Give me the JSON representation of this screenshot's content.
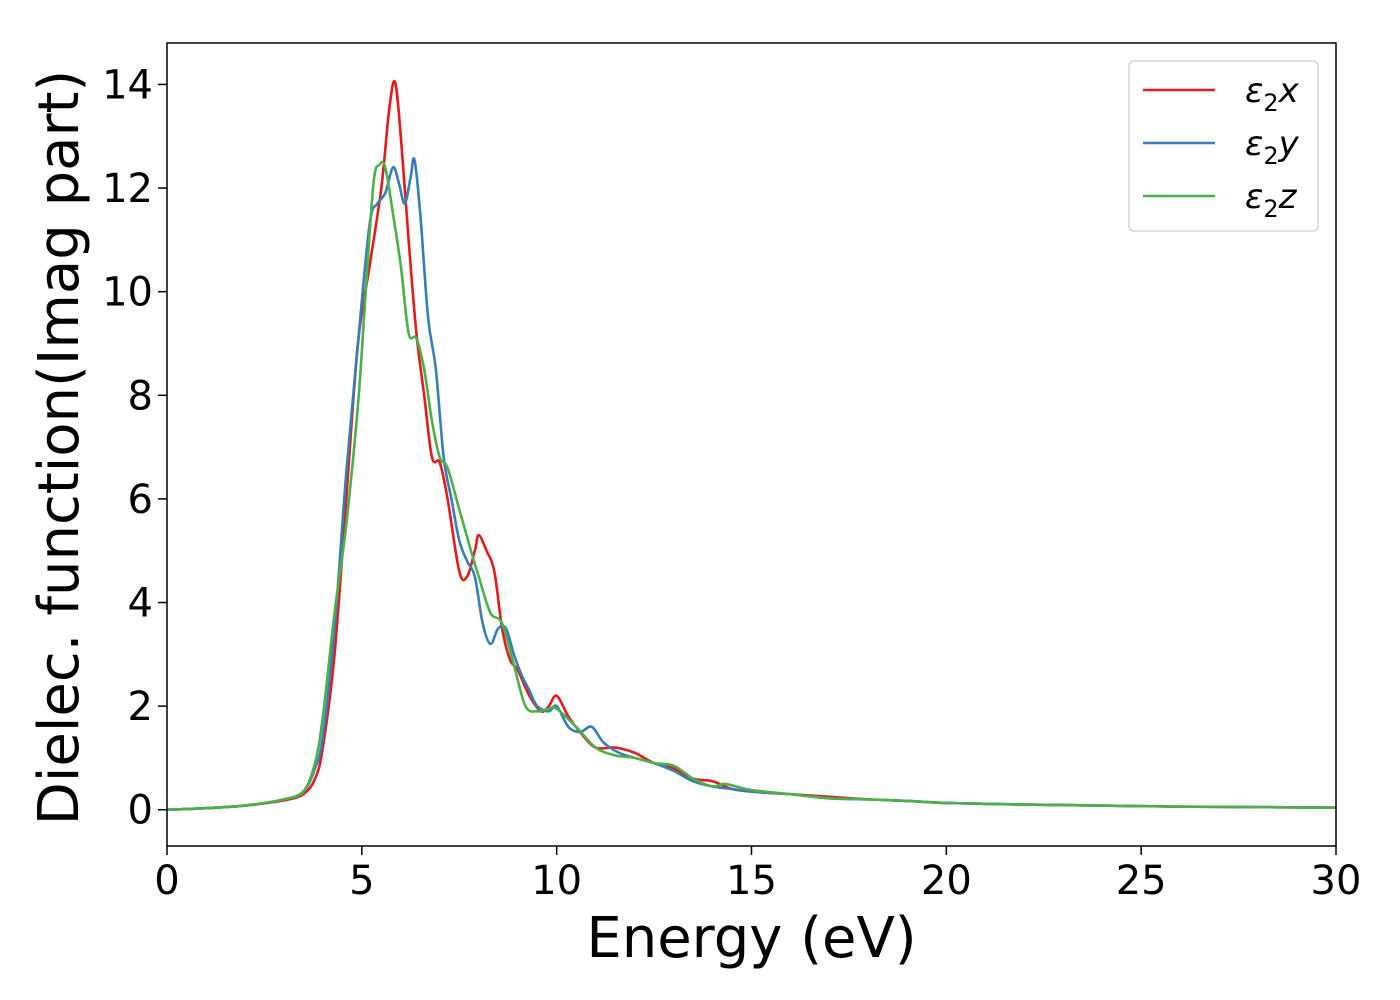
{
  "chart_data": {
    "type": "line",
    "xlabel": "Energy (eV)",
    "ylabel": "Dielec. function(Imag part)",
    "xlim": [
      0,
      30
    ],
    "ylim": [
      -0.7,
      14.8
    ],
    "xticks": [
      0,
      5,
      10,
      15,
      20,
      25,
      30
    ],
    "xtick_labels": [
      "0",
      "5",
      "10",
      "15",
      "20",
      "25",
      "30"
    ],
    "yticks": [
      0,
      2,
      4,
      6,
      8,
      10,
      12,
      14
    ],
    "ytick_labels": [
      "0",
      "2",
      "4",
      "6",
      "8",
      "10",
      "12",
      "14"
    ],
    "grid": false,
    "legend_position": "top-right",
    "series": [
      {
        "name": "ε₂x",
        "legend_main": "ε",
        "legend_sub": "2",
        "legend_var": "x",
        "color": "#e41a1c",
        "x": [
          0,
          1,
          2,
          3,
          3.5,
          3.8,
          4.0,
          4.3,
          4.6,
          4.9,
          5.2,
          5.5,
          5.7,
          5.85,
          6.0,
          6.2,
          6.4,
          6.6,
          6.8,
          7.0,
          7.2,
          7.5,
          7.7,
          7.9,
          8.0,
          8.2,
          8.4,
          8.6,
          8.8,
          9.0,
          9.3,
          9.6,
          9.8,
          10.0,
          10.3,
          10.6,
          11.0,
          11.5,
          12.0,
          12.5,
          13.0,
          13.5,
          14.0,
          14.5,
          15.0,
          16.0,
          17.0,
          18.0,
          19.0,
          20.0,
          22.0,
          24.0,
          26.0,
          28.0,
          30.0
        ],
        "y": [
          0.0,
          0.03,
          0.08,
          0.18,
          0.3,
          0.6,
          1.2,
          3.0,
          6.0,
          9.0,
          10.5,
          12.0,
          13.5,
          14.05,
          13.0,
          11.0,
          9.2,
          8.0,
          6.8,
          6.7,
          6.0,
          4.6,
          4.5,
          5.0,
          5.3,
          5.0,
          4.6,
          3.5,
          2.9,
          2.7,
          2.2,
          1.9,
          2.0,
          2.2,
          1.8,
          1.5,
          1.2,
          1.2,
          1.1,
          0.9,
          0.8,
          0.6,
          0.55,
          0.4,
          0.35,
          0.3,
          0.25,
          0.2,
          0.17,
          0.13,
          0.1,
          0.08,
          0.06,
          0.05,
          0.04
        ]
      },
      {
        "name": "ε₂y",
        "legend_main": "ε",
        "legend_sub": "2",
        "legend_var": "y",
        "color": "#377eb8",
        "x": [
          0,
          1,
          2,
          3,
          3.5,
          3.8,
          4.0,
          4.3,
          4.6,
          4.9,
          5.2,
          5.4,
          5.6,
          5.8,
          5.95,
          6.1,
          6.25,
          6.35,
          6.5,
          6.7,
          6.9,
          7.1,
          7.3,
          7.5,
          7.7,
          7.9,
          8.1,
          8.3,
          8.5,
          8.7,
          8.9,
          9.1,
          9.3,
          9.5,
          9.8,
          10.0,
          10.3,
          10.6,
          10.9,
          11.2,
          11.6,
          12.0,
          12.5,
          13.0,
          13.5,
          14.0,
          14.5,
          15.0,
          16.0,
          17.0,
          18.0,
          19.0,
          20.0,
          22.0,
          24.0,
          26.0,
          28.0,
          30.0
        ],
        "y": [
          0.0,
          0.03,
          0.08,
          0.2,
          0.35,
          0.8,
          1.4,
          3.5,
          6.5,
          9.0,
          11.3,
          11.7,
          11.9,
          12.4,
          12.1,
          11.7,
          12.2,
          12.55,
          11.5,
          9.5,
          8.5,
          6.8,
          6.0,
          5.2,
          4.8,
          4.5,
          3.6,
          3.2,
          3.5,
          3.5,
          3.0,
          2.6,
          2.3,
          2.0,
          1.9,
          2.0,
          1.6,
          1.5,
          1.6,
          1.3,
          1.1,
          1.0,
          0.9,
          0.75,
          0.55,
          0.45,
          0.4,
          0.35,
          0.3,
          0.22,
          0.2,
          0.17,
          0.13,
          0.1,
          0.08,
          0.06,
          0.05,
          0.04
        ]
      },
      {
        "name": "ε₂z",
        "legend_main": "ε",
        "legend_sub": "2",
        "legend_var": "z",
        "color": "#4daf4a",
        "x": [
          0,
          1,
          2,
          3,
          3.5,
          3.8,
          4.0,
          4.3,
          4.6,
          4.9,
          5.1,
          5.3,
          5.45,
          5.6,
          5.8,
          6.0,
          6.2,
          6.4,
          6.6,
          6.8,
          7.0,
          7.2,
          7.5,
          7.8,
          8.0,
          8.3,
          8.6,
          8.9,
          9.2,
          9.5,
          9.8,
          10.0,
          10.5,
          11.0,
          11.5,
          12.0,
          12.5,
          13.0,
          13.5,
          14.0,
          14.3,
          14.6,
          15.0,
          16.0,
          17.0,
          18.0,
          19.0,
          20.0,
          22.0,
          24.0,
          26.0,
          28.0,
          30.0
        ],
        "y": [
          0.0,
          0.03,
          0.08,
          0.2,
          0.35,
          0.9,
          1.8,
          3.8,
          5.5,
          7.8,
          10.0,
          12.1,
          12.45,
          12.4,
          11.5,
          10.5,
          9.2,
          9.1,
          8.5,
          7.5,
          6.8,
          6.6,
          5.8,
          5.0,
          4.5,
          3.8,
          3.6,
          2.8,
          2.0,
          1.9,
          1.95,
          1.95,
          1.6,
          1.2,
          1.05,
          1.0,
          0.9,
          0.85,
          0.6,
          0.45,
          0.5,
          0.45,
          0.38,
          0.3,
          0.22,
          0.2,
          0.17,
          0.13,
          0.1,
          0.08,
          0.06,
          0.05,
          0.04
        ]
      }
    ]
  }
}
